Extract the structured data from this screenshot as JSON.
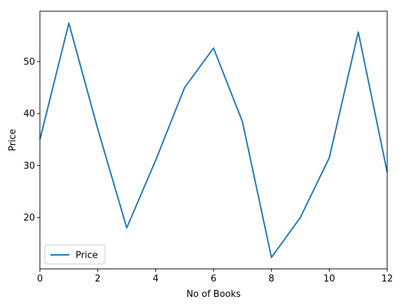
{
  "chart_data": {
    "type": "line",
    "title": "",
    "xlabel": "No of Books",
    "ylabel": "Price",
    "xlim": [
      0,
      12
    ],
    "ylim": [
      10.1,
      59.7
    ],
    "xticks": [
      0,
      2,
      4,
      6,
      8,
      10,
      12
    ],
    "xtick_labels": [
      "0",
      "2",
      "4",
      "6",
      "8",
      "10",
      "12"
    ],
    "yticks": [
      20,
      30,
      40,
      50
    ],
    "ytick_labels": [
      "20",
      "30",
      "40",
      "50"
    ],
    "grid": false,
    "legend_position": "lower-left",
    "x": [
      0,
      1,
      2,
      3,
      4,
      5,
      6,
      7,
      8,
      9,
      10,
      11,
      12
    ],
    "series": [
      {
        "name": "Price",
        "color": "#1f77b4",
        "values": [
          35.0,
          57.4,
          37.0,
          18.0,
          31.0,
          45.0,
          52.6,
          38.4,
          12.3,
          20.0,
          31.5,
          55.7,
          28.7
        ]
      }
    ]
  }
}
